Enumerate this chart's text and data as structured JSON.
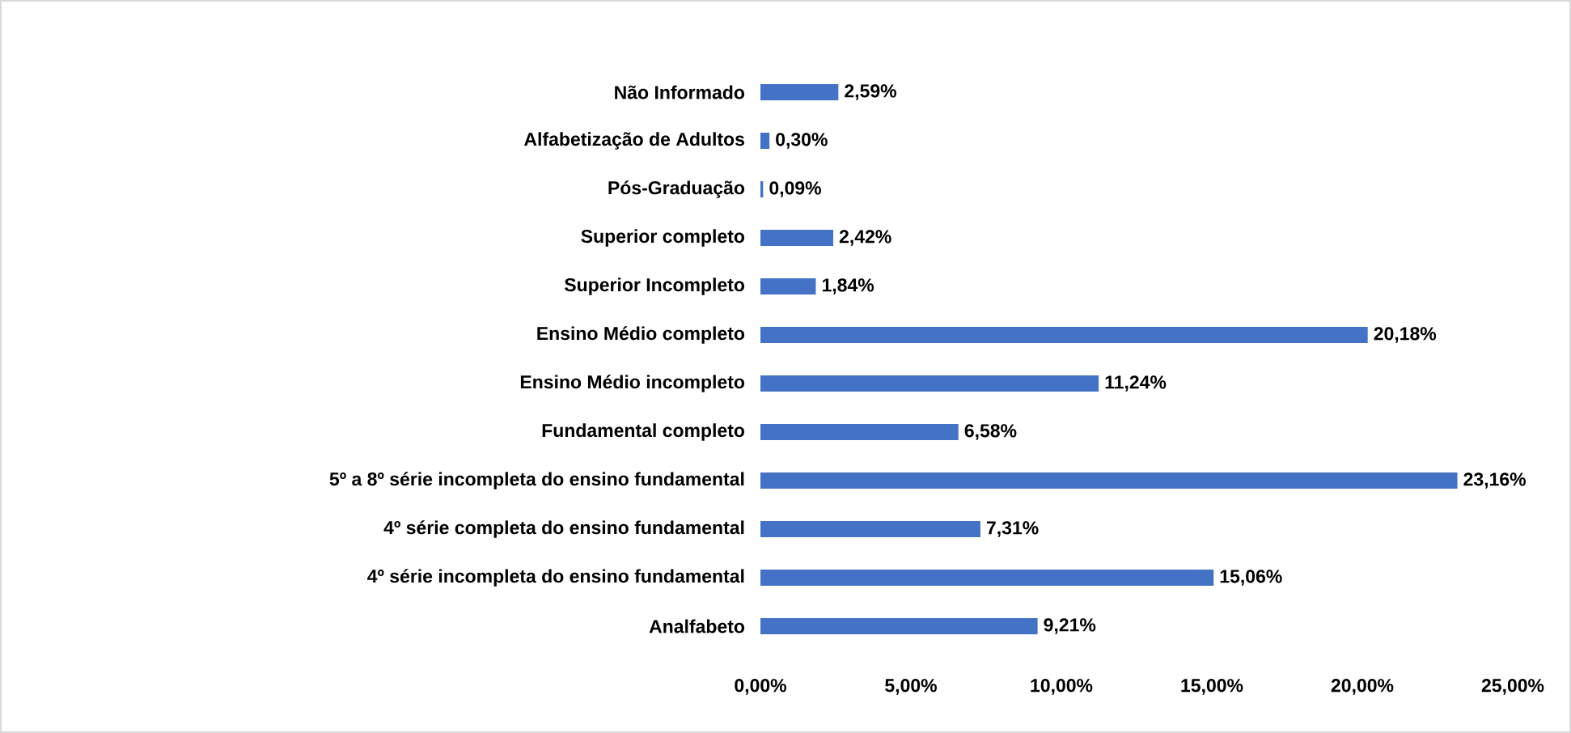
{
  "chart_data": {
    "type": "bar",
    "orientation": "horizontal",
    "categories": [
      "Não Informado",
      "Alfabetização de Adultos",
      "Pós-Graduação",
      "Superior completo",
      "Superior Incompleto",
      "Ensino Médio completo",
      "Ensino Médio incompleto",
      "Fundamental completo",
      "5º a 8º série incompleta do ensino fundamental",
      "4º série completa do ensino fundamental",
      "4º série incompleta do ensino fundamental",
      "Analfabeto"
    ],
    "values": [
      2.59,
      0.3,
      0.09,
      2.42,
      1.84,
      20.18,
      11.24,
      6.58,
      23.16,
      7.31,
      15.06,
      9.21
    ],
    "value_labels": [
      "2,59%",
      "0,30%",
      "0,09%",
      "2,42%",
      "1,84%",
      "20,18%",
      "11,24%",
      "6,58%",
      "23,16%",
      "7,31%",
      "15,06%",
      "9,21%"
    ],
    "color": "#4472c4",
    "xlim": [
      0,
      25
    ],
    "xticks": [
      {
        "value": 0,
        "label": "0,00%"
      },
      {
        "value": 5,
        "label": "5,00%"
      },
      {
        "value": 10,
        "label": "10,00%"
      },
      {
        "value": 15,
        "label": "15,00%"
      },
      {
        "value": 20,
        "label": "20,00%"
      },
      {
        "value": 25,
        "label": "25,00%"
      }
    ]
  }
}
